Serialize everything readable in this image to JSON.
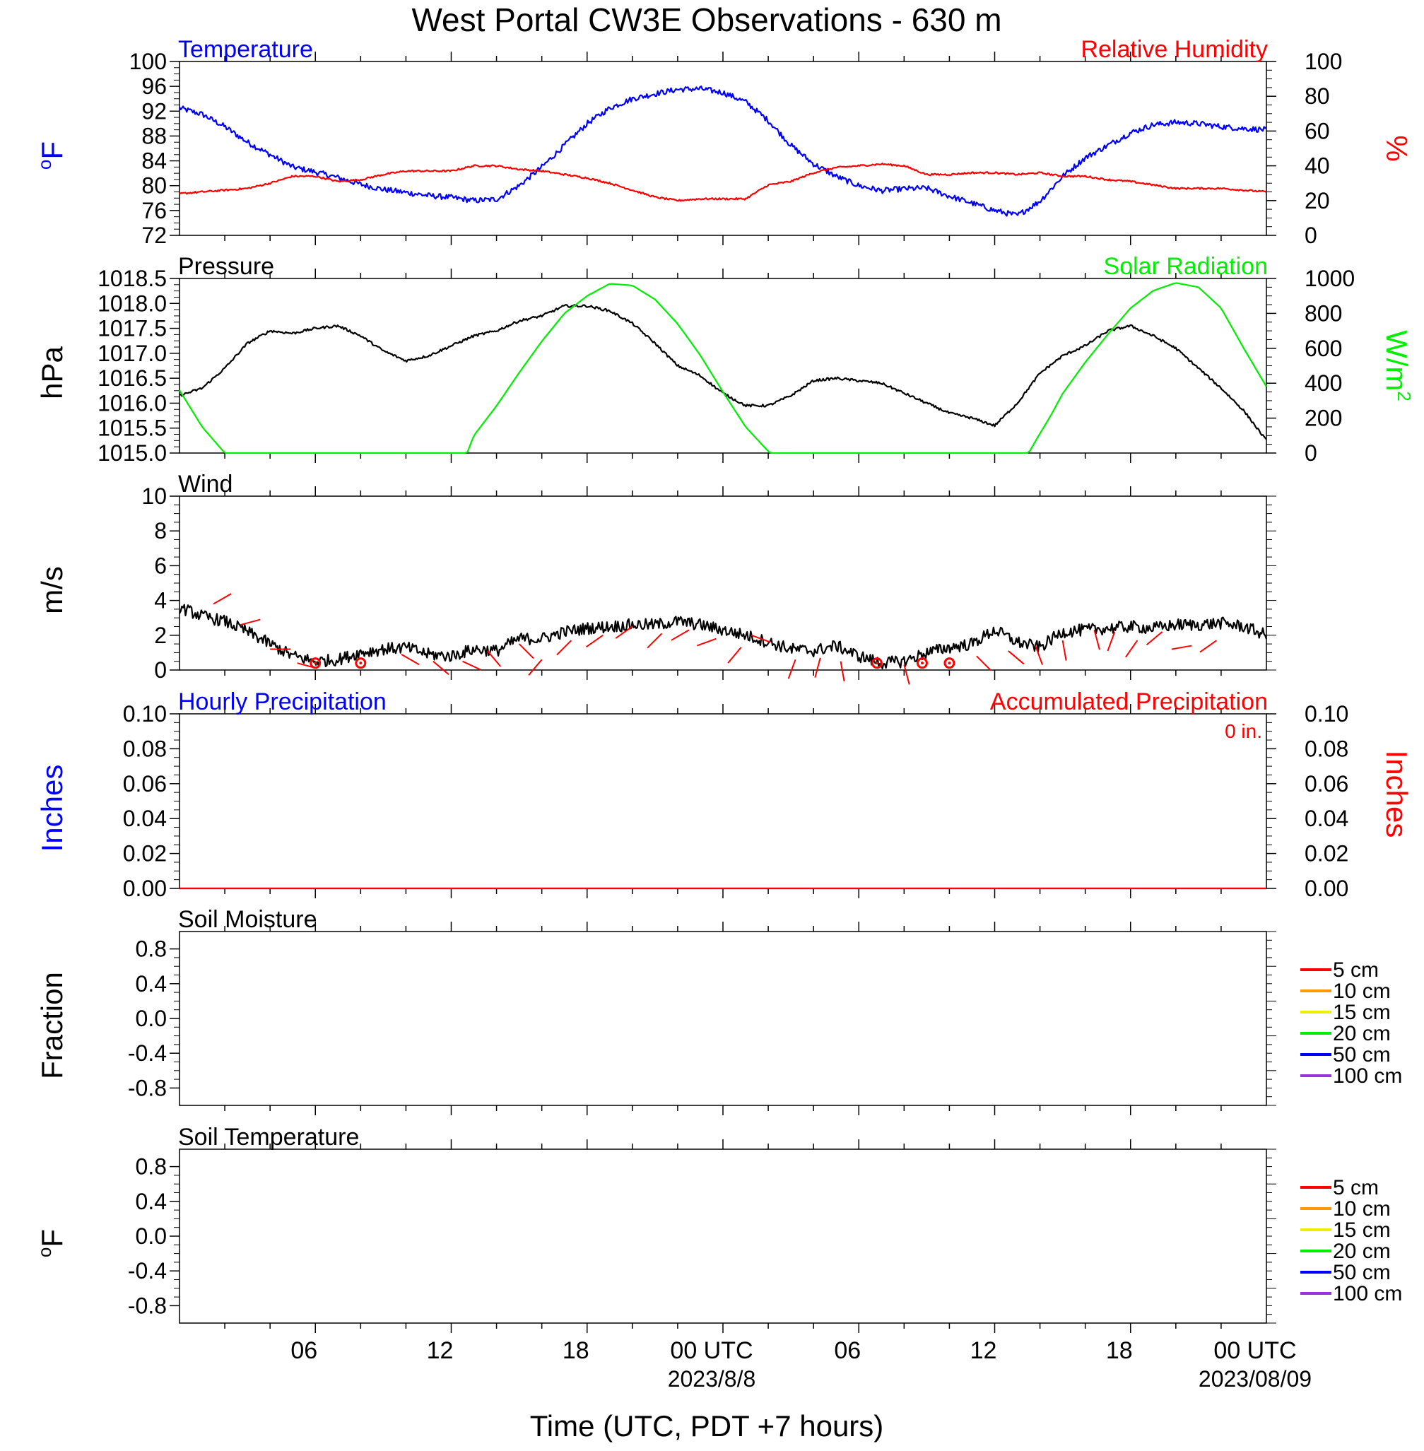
{
  "chart_data": {
    "type": "line",
    "title": "West Portal CW3E Observations - 630 m",
    "xlabel": "Time (UTC, PDT +7 hours)",
    "x_axis": {
      "range_hours": [
        0,
        48
      ],
      "ticks": [
        {
          "t": 6,
          "label": "06",
          "sublabel": ""
        },
        {
          "t": 12,
          "label": "12",
          "sublabel": ""
        },
        {
          "t": 18,
          "label": "18",
          "sublabel": ""
        },
        {
          "t": 23.5,
          "label": "00 UTC",
          "sublabel": "2023/8/8"
        },
        {
          "t": 30,
          "label": "06",
          "sublabel": ""
        },
        {
          "t": 36,
          "label": "12",
          "sublabel": ""
        },
        {
          "t": 42,
          "label": "18",
          "sublabel": ""
        },
        {
          "t": 47.5,
          "label": "00 UTC",
          "sublabel": "2023/08/09"
        }
      ]
    },
    "panels": [
      {
        "id": "temp_rh",
        "left_title": "Temperature",
        "right_title": "Relative Humidity",
        "left_unit": "oF",
        "right_unit": "%",
        "left_color": "#0000ff",
        "right_color": "#ff0000",
        "left_ylim": [
          72,
          100
        ],
        "left_ticks": [
          "72",
          "76",
          "80",
          "84",
          "88",
          "92",
          "96",
          "100"
        ],
        "right_ylim": [
          0,
          100
        ],
        "right_ticks": [
          "0",
          "20",
          "40",
          "60",
          "80",
          "100"
        ],
        "series": [
          {
            "name": "Temperature",
            "axis": "left",
            "color": "#0000ff",
            "noise": 0.45,
            "t": [
              0,
              1,
              2,
              3,
              4,
              5,
              6,
              7,
              8,
              9,
              10,
              11,
              12,
              13,
              14,
              15,
              16,
              17,
              18,
              19,
              20,
              21,
              22,
              23,
              24,
              25,
              26,
              27,
              28,
              29,
              30,
              31,
              32,
              33,
              34,
              35,
              36,
              37,
              38,
              39,
              40,
              41,
              42,
              43,
              44,
              45,
              46,
              47,
              48
            ],
            "values": [
              92.5,
              91.5,
              89.5,
              87,
              85,
              83,
              82.2,
              81.3,
              80.2,
              79.4,
              78.9,
              78.4,
              78.1,
              77.6,
              77.8,
              80,
              83,
              86.5,
              90,
              92.5,
              94,
              94.8,
              95.5,
              95.6,
              95,
              93.5,
              90.5,
              86.5,
              83.5,
              81.5,
              80,
              79.2,
              79.5,
              79.6,
              78.3,
              77.2,
              76,
              75.2,
              77.5,
              81.5,
              84.5,
              86.5,
              88.5,
              89.8,
              90.2,
              90,
              89.5,
              89.2,
              89
            ]
          },
          {
            "name": "Relative Humidity",
            "axis": "right",
            "color": "#ff0000",
            "noise": 0.5,
            "t": [
              0,
              1,
              2,
              3,
              4,
              5,
              6,
              7,
              8,
              9,
              10,
              11,
              12,
              13,
              14,
              15,
              16,
              17,
              18,
              19,
              20,
              21,
              22,
              23,
              24,
              25,
              26,
              27,
              28,
              29,
              30,
              31,
              32,
              33,
              34,
              35,
              36,
              37,
              38,
              39,
              40,
              41,
              42,
              43,
              44,
              45,
              46,
              47,
              48
            ],
            "values": [
              24,
              25,
              26,
              27,
              30,
              34,
              34,
              31,
              32,
              35,
              37,
              37,
              37,
              40,
              40,
              38,
              37,
              35,
              33,
              30,
              26,
              22,
              20,
              21,
              21,
              21,
              29,
              31,
              36,
              39,
              40,
              41,
              40,
              35,
              35,
              36,
              36,
              35,
              36,
              34,
              34,
              32,
              31,
              29,
              27,
              27,
              27,
              26,
              25
            ]
          }
        ]
      },
      {
        "id": "pressure_solar",
        "left_title": "Pressure",
        "right_title": "Solar Radiation",
        "left_unit": "hPa",
        "right_unit": "W/m2",
        "left_color": "#000000",
        "right_color": "#00ee00",
        "left_ylim": [
          1015.0,
          1018.5
        ],
        "left_ticks": [
          "1015.0",
          "1015.5",
          "1016.0",
          "1016.5",
          "1017.0",
          "1017.5",
          "1018.0",
          "1018.5"
        ],
        "right_ylim": [
          0,
          1000
        ],
        "right_ticks": [
          "0",
          "200",
          "400",
          "600",
          "800",
          "1000"
        ],
        "series": [
          {
            "name": "Pressure",
            "axis": "left",
            "color": "#000000",
            "noise": 0.025,
            "t": [
              0,
              1,
              2,
              3,
              4,
              5,
              6,
              7,
              8,
              9,
              10,
              11,
              12,
              13,
              14,
              15,
              16,
              17,
              18,
              19,
              20,
              21,
              22,
              23,
              24,
              25,
              26,
              27,
              28,
              29,
              30,
              31,
              32,
              33,
              34,
              35,
              36,
              37,
              38,
              39,
              40,
              41,
              42,
              43,
              44,
              45,
              46,
              47,
              48
            ],
            "values": [
              1016.15,
              1016.3,
              1016.7,
              1017.2,
              1017.45,
              1017.4,
              1017.5,
              1017.55,
              1017.35,
              1017.05,
              1016.85,
              1016.95,
              1017.15,
              1017.35,
              1017.45,
              1017.65,
              1017.75,
              1017.95,
              1017.95,
              1017.85,
              1017.6,
              1017.2,
              1016.75,
              1016.55,
              1016.2,
              1015.95,
              1015.95,
              1016.15,
              1016.45,
              1016.5,
              1016.45,
              1016.4,
              1016.2,
              1016.0,
              1015.8,
              1015.7,
              1015.55,
              1016.0,
              1016.6,
              1016.95,
              1017.15,
              1017.45,
              1017.55,
              1017.35,
              1017.1,
              1016.7,
              1016.3,
              1015.85,
              1015.25
            ]
          },
          {
            "name": "Solar Radiation",
            "axis": "right",
            "color": "#00ee00",
            "noise": 0,
            "t": [
              0,
              1,
              2,
              3,
              12.7,
              13,
              14,
              15,
              16,
              17,
              18,
              19,
              20,
              21,
              22,
              23,
              24,
              25,
              26,
              26.1,
              37.5,
              37.9,
              38.5,
              39,
              40,
              41,
              42,
              43,
              44,
              45,
              46,
              47,
              48
            ],
            "values": [
              360,
              150,
              0,
              0,
              0,
              100,
              270,
              460,
              640,
              800,
              900,
              970,
              960,
              880,
              740,
              560,
              350,
              150,
              10,
              0,
              0,
              90,
              220,
              340,
              520,
              680,
              830,
              930,
              975,
              950,
              830,
              600,
              380
            ]
          }
        ]
      },
      {
        "id": "wind",
        "left_title": "Wind",
        "left_unit": "m/s",
        "left_color": "#000000",
        "left_ylim": [
          0,
          10
        ],
        "left_ticks": [
          "0",
          "2",
          "4",
          "6",
          "8",
          "10"
        ],
        "series": [
          {
            "name": "Wind",
            "axis": "left",
            "color": "#000000",
            "noise": 0.35,
            "t": [
              0,
              1,
              2,
              3,
              4,
              5,
              6,
              7,
              8,
              9,
              10,
              11,
              12,
              13,
              14,
              15,
              16,
              17,
              18,
              19,
              20,
              21,
              22,
              23,
              24,
              25,
              26,
              27,
              28,
              29,
              30,
              31,
              32,
              33,
              34,
              35,
              36,
              37,
              38,
              39,
              40,
              41,
              42,
              43,
              44,
              45,
              46,
              47,
              48
            ],
            "values": [
              3.6,
              3.1,
              2.8,
              2.2,
              1.5,
              0.8,
              0.5,
              0.6,
              1.0,
              1.2,
              1.3,
              0.9,
              0.8,
              1.2,
              1.1,
              1.8,
              1.8,
              2.2,
              2.4,
              2.5,
              2.6,
              2.6,
              2.8,
              2.6,
              2.3,
              2.0,
              1.6,
              1.2,
              1.1,
              1.4,
              0.8,
              0.4,
              0.5,
              1.0,
              1.3,
              1.5,
              2.3,
              1.6,
              1.3,
              2.2,
              2.3,
              2.4,
              2.5,
              2.4,
              2.6,
              2.6,
              2.7,
              2.5,
              2.0
            ]
          }
        ],
        "barbs": [
          {
            "t": 1.5,
            "speed": 3.8,
            "angle": 60
          },
          {
            "t": 2.7,
            "speed": 2.6,
            "angle": 75
          },
          {
            "t": 4,
            "speed": 1.2,
            "angle": 90
          },
          {
            "t": 5.2,
            "speed": 0.4,
            "angle": 105
          },
          {
            "t": 6,
            "calm": true
          },
          {
            "t": 8,
            "calm": true
          },
          {
            "t": 9.8,
            "speed": 0.9,
            "angle": 120
          },
          {
            "t": 11.2,
            "speed": 0.5,
            "angle": 130
          },
          {
            "t": 12.5,
            "speed": 0.5,
            "angle": 115
          },
          {
            "t": 13.6,
            "speed": 1.1,
            "angle": 140
          },
          {
            "t": 15,
            "speed": 1.5,
            "angle": 135
          },
          {
            "t": 16,
            "speed": 0.6,
            "angle": 220
          },
          {
            "t": 17.3,
            "speed": 1.7,
            "angle": 225
          },
          {
            "t": 18.7,
            "speed": 2.0,
            "angle": 235
          },
          {
            "t": 20,
            "speed": 2.5,
            "angle": 235
          },
          {
            "t": 21.3,
            "speed": 2.1,
            "angle": 225
          },
          {
            "t": 22.5,
            "speed": 2.3,
            "angle": 240
          },
          {
            "t": 23.7,
            "speed": 1.8,
            "angle": 250
          },
          {
            "t": 24.8,
            "speed": 1.3,
            "angle": 220
          },
          {
            "t": 26.1,
            "speed": 1.6,
            "angle": 290
          },
          {
            "t": 27.2,
            "speed": 0.6,
            "angle": 200
          },
          {
            "t": 28.3,
            "speed": 0.7,
            "angle": 195
          },
          {
            "t": 29.2,
            "speed": 0.5,
            "angle": 170
          },
          {
            "t": 30.8,
            "calm": true
          },
          {
            "t": 32,
            "speed": 0.3,
            "angle": 165
          },
          {
            "t": 32.8,
            "calm": true
          },
          {
            "t": 34,
            "calm": true
          },
          {
            "t": 35.2,
            "speed": 0.8,
            "angle": 135
          },
          {
            "t": 36.6,
            "speed": 1.1,
            "angle": 130
          },
          {
            "t": 37.8,
            "speed": 1.4,
            "angle": 160
          },
          {
            "t": 39,
            "speed": 1.7,
            "angle": 170
          },
          {
            "t": 40.4,
            "speed": 2.3,
            "angle": 165
          },
          {
            "t": 41.3,
            "speed": 2.2,
            "angle": 200
          },
          {
            "t": 42.3,
            "speed": 1.7,
            "angle": 215
          },
          {
            "t": 43.4,
            "speed": 2.2,
            "angle": 230
          },
          {
            "t": 44.7,
            "speed": 1.4,
            "angle": 260
          },
          {
            "t": 45.8,
            "speed": 1.7,
            "angle": 235
          }
        ]
      },
      {
        "id": "precip",
        "left_title": "Hourly Precipitation",
        "right_title": "Accumulated Precipitation",
        "annotation": "0 in.",
        "left_unit": "Inches",
        "right_unit": "Inches",
        "left_color": "#0000ff",
        "right_color": "#ff0000",
        "left_ylim": [
          0,
          0.1
        ],
        "left_ticks": [
          "0.00",
          "0.02",
          "0.04",
          "0.06",
          "0.08",
          "0.10"
        ],
        "right_ylim": [
          0,
          0.1
        ],
        "right_ticks": [
          "0.00",
          "0.02",
          "0.04",
          "0.06",
          "0.08",
          "0.10"
        ],
        "series": [
          {
            "name": "Hourly Precipitation",
            "axis": "left",
            "color": "#0000ff",
            "noise": 0,
            "t": [
              0,
              48
            ],
            "values": [
              0,
              0
            ]
          },
          {
            "name": "Accumulated Precipitation",
            "axis": "right",
            "color": "#ff0000",
            "noise": 0,
            "t": [
              0,
              48
            ],
            "values": [
              0,
              0
            ]
          }
        ]
      },
      {
        "id": "soil_moisture",
        "left_title": "Soil Moisture",
        "left_unit": "Fraction",
        "left_color": "#000000",
        "left_ylim": [
          -1.0,
          1.0
        ],
        "left_tick_values": [
          -0.8,
          -0.4,
          0.0,
          0.4,
          0.8
        ],
        "left_ticks": [
          "-0.8",
          "-0.4",
          "0.0",
          "0.4",
          "0.8"
        ],
        "series": [],
        "legend": [
          {
            "label": "5 cm",
            "color": "#ff0000"
          },
          {
            "label": "10 cm",
            "color": "#ff9900"
          },
          {
            "label": "15 cm",
            "color": "#eeee00"
          },
          {
            "label": "20 cm",
            "color": "#00ee00"
          },
          {
            "label": "50 cm",
            "color": "#0000ff"
          },
          {
            "label": "100 cm",
            "color": "#9933dd"
          }
        ]
      },
      {
        "id": "soil_temp",
        "left_title": "Soil Temperature",
        "left_unit": "oF",
        "left_color": "#000000",
        "left_ylim": [
          -1.0,
          1.0
        ],
        "left_tick_values": [
          -0.8,
          -0.4,
          0.0,
          0.4,
          0.8
        ],
        "left_ticks": [
          "-0.8",
          "-0.4",
          "0.0",
          "0.4",
          "0.8"
        ],
        "series": [],
        "legend": [
          {
            "label": "5 cm",
            "color": "#ff0000"
          },
          {
            "label": "10 cm",
            "color": "#ff9900"
          },
          {
            "label": "15 cm",
            "color": "#eeee00"
          },
          {
            "label": "20 cm",
            "color": "#00ee00"
          },
          {
            "label": "50 cm",
            "color": "#0000ff"
          },
          {
            "label": "100 cm",
            "color": "#9933dd"
          }
        ]
      }
    ]
  }
}
